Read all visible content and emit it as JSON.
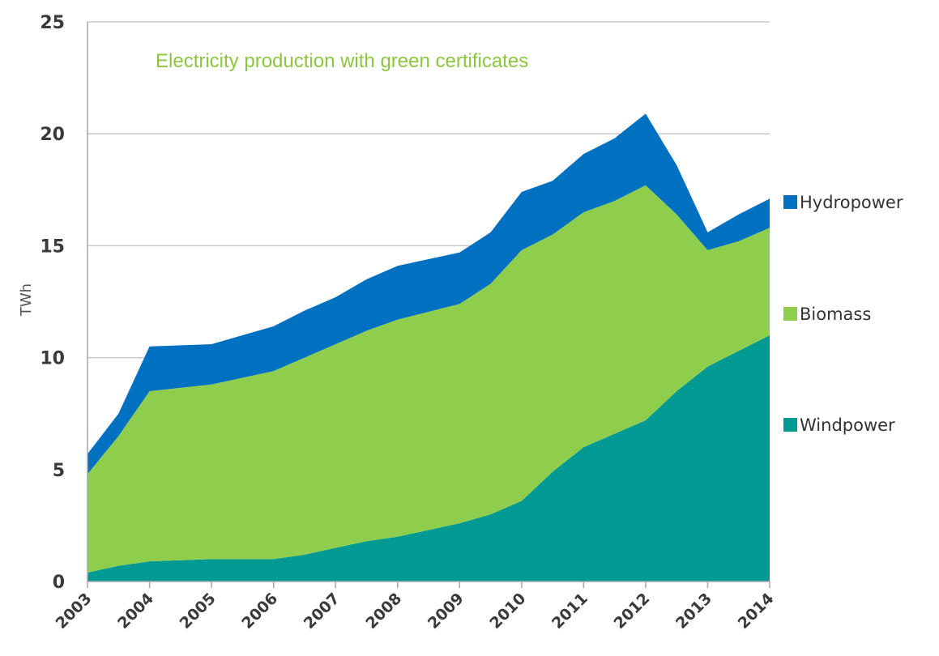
{
  "chart_data": {
    "type": "area",
    "stacked": true,
    "title": "Electricity production with green certificates",
    "title_color": "#8cc63f",
    "ylabel": "TWh",
    "xlabel": "",
    "ylim": [
      0,
      25
    ],
    "yticks": [
      "0",
      "5",
      "10",
      "15",
      "20",
      "25"
    ],
    "ytick_values": [
      0,
      5,
      10,
      15,
      20,
      25
    ],
    "xlim": [
      2003,
      2014
    ],
    "xticks": [
      "2003",
      "2004",
      "2005",
      "2006",
      "2007",
      "2008",
      "2009",
      "2010",
      "2011",
      "2012",
      "2013",
      "2014"
    ],
    "xtick_values": [
      2003,
      2004,
      2005,
      2006,
      2007,
      2008,
      2009,
      2010,
      2011,
      2012,
      2013,
      2014
    ],
    "grid": "horizontal",
    "legend_position": "right",
    "x": [
      2003,
      2003.5,
      2004,
      2005,
      2006,
      2006.5,
      2007,
      2007.5,
      2008,
      2009,
      2009.5,
      2010,
      2010.5,
      2011,
      2011.5,
      2012,
      2012.5,
      2013,
      2013.5,
      2014
    ],
    "series": [
      {
        "name": "Windpower",
        "color": "#009a93",
        "values": [
          0.4,
          0.7,
          0.9,
          1.0,
          1.0,
          1.2,
          1.5,
          1.8,
          2.0,
          2.6,
          3.0,
          3.6,
          4.9,
          6.0,
          6.6,
          7.2,
          8.5,
          9.6,
          10.3,
          11.0
        ]
      },
      {
        "name": "Biomass",
        "color": "#8fce4d",
        "values": [
          4.4,
          5.8,
          7.6,
          7.8,
          8.4,
          8.8,
          9.1,
          9.4,
          9.7,
          9.8,
          10.3,
          11.2,
          10.6,
          10.5,
          10.4,
          10.5,
          7.9,
          5.2,
          4.9,
          4.8
        ]
      },
      {
        "name": "Hydropower",
        "color": "#0070c0",
        "values": [
          0.9,
          1.0,
          2.0,
          1.8,
          2.0,
          2.1,
          2.1,
          2.3,
          2.4,
          2.3,
          2.3,
          2.6,
          2.4,
          2.6,
          2.8,
          3.2,
          2.2,
          0.8,
          1.2,
          1.3
        ]
      }
    ]
  }
}
